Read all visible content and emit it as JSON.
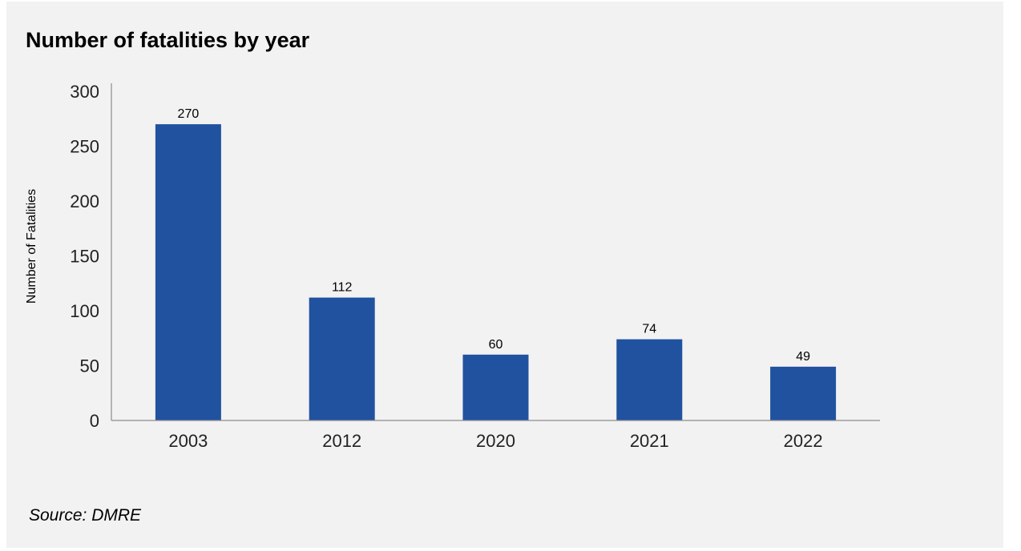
{
  "chart_data": {
    "type": "bar",
    "title": "Number of fatalities by year",
    "xlabel": "",
    "ylabel": "Number of Fatalities",
    "categories": [
      "2003",
      "2012",
      "2020",
      "2021",
      "2022"
    ],
    "values": [
      270,
      112,
      60,
      74,
      49
    ],
    "data_labels": [
      "270",
      "112",
      "60",
      "74",
      "49"
    ],
    "ylim": [
      0,
      300
    ],
    "yticks": [
      0,
      50,
      100,
      150,
      200,
      250,
      300
    ],
    "grid": false,
    "legend": "none",
    "bar_color": "#2152a0",
    "axis_color": "#8c8c8c"
  },
  "source": "Source: DMRE"
}
